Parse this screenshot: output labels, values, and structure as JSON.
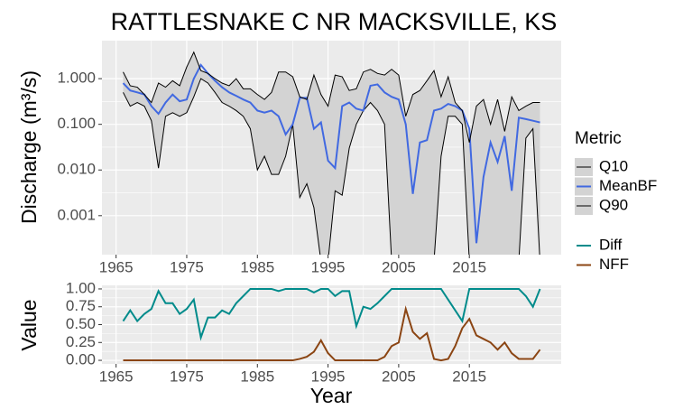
{
  "chart_data": [
    {
      "type": "line",
      "title": "RATTLESNAKE C NR MACKSVILLE, KS",
      "y_label": "Discharge (m³/s)",
      "log_y": true,
      "grid": true,
      "ribbon_fill": "#d3d3d3",
      "legend_title": "Metric",
      "legend_position": "right",
      "x": [
        1966,
        1967,
        1968,
        1969,
        1970,
        1971,
        1972,
        1973,
        1974,
        1975,
        1976,
        1977,
        1978,
        1979,
        1980,
        1981,
        1982,
        1983,
        1984,
        1985,
        1986,
        1987,
        1988,
        1989,
        1990,
        1991,
        1992,
        1993,
        1994,
        1995,
        1996,
        1997,
        1998,
        1999,
        2000,
        2001,
        2002,
        2003,
        2004,
        2005,
        2006,
        2007,
        2008,
        2009,
        2010,
        2011,
        2012,
        2013,
        2014,
        2015,
        2016,
        2017,
        2018,
        2019,
        2020,
        2021,
        2022,
        2023,
        2024,
        2025
      ],
      "xlim": [
        1963,
        2028
      ],
      "xticks": [
        1965,
        1975,
        1985,
        1995,
        2005,
        2015
      ],
      "ylim": [
        0.00014,
        6.8
      ],
      "yticks": [
        {
          "value": 0.001,
          "label": "0.001"
        },
        {
          "value": 0.01,
          "label": "0.010"
        },
        {
          "value": 0.1,
          "label": "0.100"
        },
        {
          "value": 1,
          "label": "1.000"
        }
      ],
      "series": [
        {
          "name": "Q10",
          "color": "#000000",
          "values": [
            0.5,
            0.25,
            0.3,
            0.25,
            0.12,
            0.011,
            0.15,
            0.18,
            0.15,
            0.18,
            0.4,
            1.0,
            0.8,
            0.5,
            0.3,
            0.25,
            0.2,
            0.15,
            0.08,
            0.01,
            0.02,
            0.008,
            0.008,
            0.02,
            0.1,
            0.0025,
            0.005,
            0.0015,
            0.0001,
            0.0001,
            0.0035,
            0.0028,
            0.03,
            0.1,
            0.2,
            0.3,
            0.2,
            0.1,
            0.0001,
            0.0001,
            0.0001,
            0.0001,
            0.0001,
            0.0001,
            0.0001,
            0.02,
            0.15,
            0.15,
            0.1,
            0.0001,
            0.0001,
            0.0001,
            0.0001,
            0.0001,
            0.0001,
            0.0001,
            0.0001,
            0.05,
            0.08,
            0.0001
          ]
        },
        {
          "name": "MeanBF",
          "color": "#4169e1",
          "values": [
            0.8,
            0.55,
            0.5,
            0.45,
            0.25,
            0.17,
            0.3,
            0.45,
            0.32,
            0.35,
            1.0,
            2.0,
            1.3,
            0.9,
            0.65,
            0.5,
            0.42,
            0.35,
            0.3,
            0.2,
            0.18,
            0.2,
            0.15,
            0.06,
            0.1,
            0.38,
            0.38,
            0.08,
            0.11,
            0.016,
            0.011,
            0.25,
            0.3,
            0.22,
            0.2,
            0.7,
            0.75,
            0.5,
            0.4,
            0.35,
            0.1,
            0.003,
            0.04,
            0.045,
            0.2,
            0.22,
            0.28,
            0.25,
            0.2,
            0.08,
            0.00025,
            0.007,
            0.04,
            0.015,
            0.055,
            0.0035,
            0.14,
            0.13,
            0.12,
            0.11
          ]
        },
        {
          "name": "Q90",
          "color": "#000000",
          "values": [
            1.4,
            0.7,
            0.65,
            0.45,
            0.3,
            0.8,
            0.65,
            0.9,
            0.7,
            1.8,
            3.8,
            1.5,
            1.3,
            1.0,
            0.8,
            0.7,
            1.0,
            0.6,
            0.6,
            0.45,
            0.35,
            0.5,
            1.4,
            1.4,
            1.1,
            0.4,
            0.35,
            1.2,
            0.45,
            0.25,
            1.2,
            1.1,
            0.55,
            0.6,
            1.4,
            1.6,
            1.3,
            1.2,
            1.6,
            1.2,
            0.15,
            0.45,
            0.55,
            0.9,
            1.5,
            0.4,
            1.1,
            0.3,
            0.2,
            0.04,
            0.25,
            0.35,
            0.1,
            0.35,
            0.07,
            0.4,
            0.2,
            0.25,
            0.3,
            0.3
          ]
        }
      ]
    },
    {
      "type": "line",
      "x_label": "Year",
      "y_label": "Value",
      "grid": true,
      "legend_position": "right",
      "x": [
        1966,
        1967,
        1968,
        1969,
        1970,
        1971,
        1972,
        1973,
        1974,
        1975,
        1976,
        1977,
        1978,
        1979,
        1980,
        1981,
        1982,
        1983,
        1984,
        1985,
        1986,
        1987,
        1988,
        1989,
        1990,
        1991,
        1992,
        1993,
        1994,
        1995,
        1996,
        1997,
        1998,
        1999,
        2000,
        2001,
        2002,
        2003,
        2004,
        2005,
        2006,
        2007,
        2008,
        2009,
        2010,
        2011,
        2012,
        2013,
        2014,
        2015,
        2016,
        2017,
        2018,
        2019,
        2020,
        2021,
        2022,
        2023,
        2024,
        2025
      ],
      "xlim": [
        1963,
        2028
      ],
      "xticks": [
        1965,
        1975,
        1985,
        1995,
        2005,
        2015
      ],
      "ylim": [
        -0.05,
        1.05
      ],
      "yticks": [
        {
          "value": 0,
          "label": "0.00"
        },
        {
          "value": 0.25,
          "label": "0.25"
        },
        {
          "value": 0.5,
          "label": "0.50"
        },
        {
          "value": 0.75,
          "label": "0.75"
        },
        {
          "value": 1,
          "label": "1.00"
        }
      ],
      "series": [
        {
          "name": "Diff",
          "color": "#008b8b",
          "values": [
            0.55,
            0.7,
            0.55,
            0.65,
            0.72,
            0.97,
            0.8,
            0.8,
            0.65,
            0.72,
            0.85,
            0.32,
            0.6,
            0.6,
            0.7,
            0.65,
            0.8,
            0.9,
            1,
            1,
            1,
            1,
            0.97,
            1,
            1,
            1,
            1,
            0.95,
            1,
            1,
            0.9,
            0.97,
            0.97,
            0.48,
            0.75,
            0.72,
            0.8,
            0.9,
            1,
            1,
            1,
            1,
            1,
            1,
            1,
            1,
            0.85,
            0.7,
            0.55,
            1,
            1,
            1,
            1,
            1,
            1,
            1,
            1,
            0.9,
            0.75,
            1
          ]
        },
        {
          "name": "NFF",
          "color": "#8b4513",
          "values": [
            0,
            0,
            0,
            0,
            0,
            0,
            0,
            0,
            0,
            0,
            0,
            0,
            0,
            0,
            0,
            0,
            0,
            0,
            0,
            0,
            0,
            0,
            0,
            0,
            0,
            0.02,
            0.05,
            0.12,
            0.28,
            0.1,
            0,
            0,
            0,
            0,
            0,
            0,
            0,
            0.05,
            0.2,
            0.25,
            0.72,
            0.4,
            0.3,
            0.38,
            0.02,
            0,
            0.02,
            0.2,
            0.45,
            0.58,
            0.35,
            0.3,
            0.25,
            0.15,
            0.25,
            0.1,
            0.02,
            0.02,
            0.02,
            0.15
          ]
        }
      ]
    }
  ]
}
